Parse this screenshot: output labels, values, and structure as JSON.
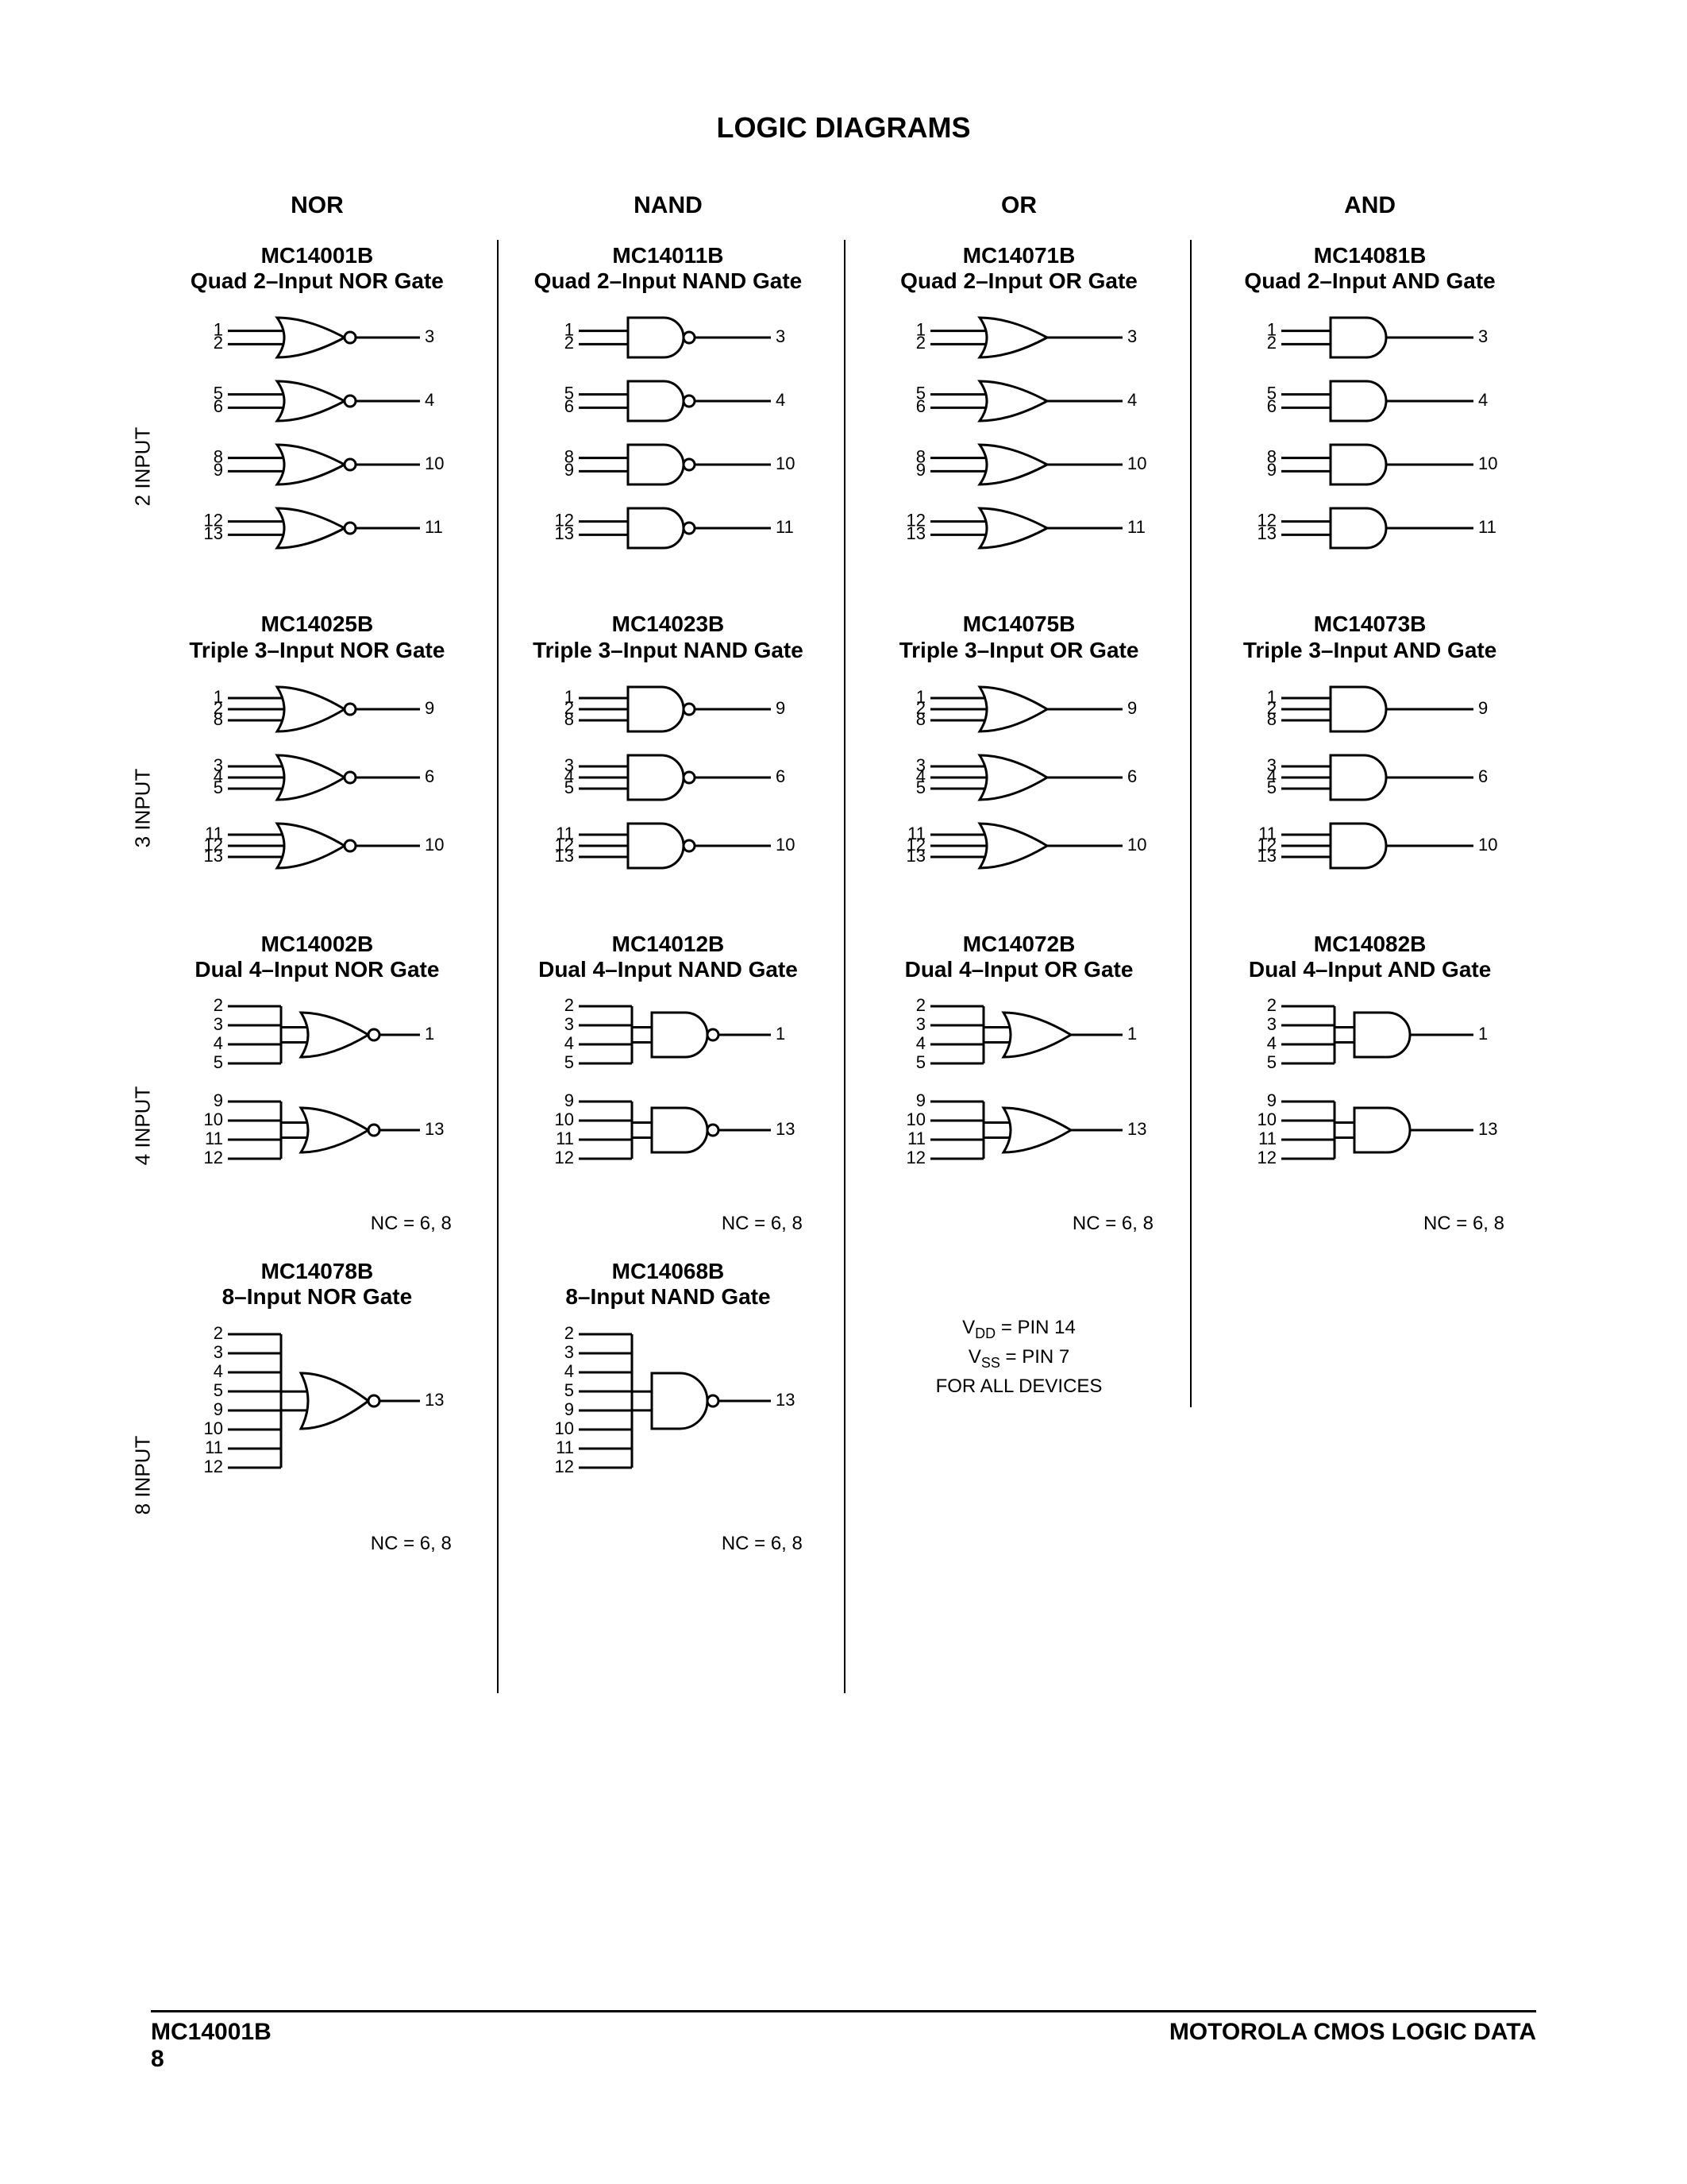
{
  "title": "LOGIC DIAGRAMS",
  "columns": [
    "NOR",
    "NAND",
    "OR",
    "AND"
  ],
  "rowLabels": [
    "2 INPUT",
    "3 INPUT",
    "4 INPUT",
    "8 INPUT"
  ],
  "pinNote": {
    "line1a": "V",
    "line1sub": "DD",
    "line1b": " = PIN 14",
    "line2a": "V",
    "line2sub": "SS",
    "line2b": " = PIN 7",
    "line3": "FOR ALL DEVICES"
  },
  "footer": {
    "left1": "MC14001B",
    "left2": "8",
    "right": "MOTOROLA CMOS LOGIC DATA"
  },
  "ncLabel": "NC = 6, 8",
  "style": {
    "stroke": "#000000",
    "strokeWidth": 3,
    "pinFont": 22,
    "gateFill": "#ffffff"
  },
  "cells": {
    "nor": {
      "q2": {
        "part": "MC14001B",
        "desc": "Quad 2–Input NOR Gate"
      },
      "t3": {
        "part": "MC14025B",
        "desc": "Triple 3–Input NOR Gate"
      },
      "d4": {
        "part": "MC14002B",
        "desc": "Dual 4–Input NOR Gate"
      },
      "i8": {
        "part": "MC14078B",
        "desc": "8–Input NOR Gate"
      }
    },
    "nand": {
      "q2": {
        "part": "MC14011B",
        "desc": "Quad 2–Input NAND Gate"
      },
      "t3": {
        "part": "MC14023B",
        "desc": "Triple 3–Input NAND Gate"
      },
      "d4": {
        "part": "MC14012B",
        "desc": "Dual 4–Input NAND Gate"
      },
      "i8": {
        "part": "MC14068B",
        "desc": "8–Input NAND Gate"
      }
    },
    "or": {
      "q2": {
        "part": "MC14071B",
        "desc": "Quad 2–Input OR Gate"
      },
      "t3": {
        "part": "MC14075B",
        "desc": "Triple 3–Input OR Gate"
      },
      "d4": {
        "part": "MC14072B",
        "desc": "Dual 4–Input OR Gate"
      }
    },
    "and": {
      "q2": {
        "part": "MC14081B",
        "desc": "Quad 2–Input AND Gate"
      },
      "t3": {
        "part": "MC14073B",
        "desc": "Triple 3–Input AND Gate"
      },
      "d4": {
        "part": "MC14082B",
        "desc": "Dual 4–Input AND Gate"
      }
    }
  },
  "pins": {
    "q2": [
      {
        "in": [
          "1",
          "2"
        ],
        "out": "3"
      },
      {
        "in": [
          "5",
          "6"
        ],
        "out": "4"
      },
      {
        "in": [
          "8",
          "9"
        ],
        "out": "10"
      },
      {
        "in": [
          "12",
          "13"
        ],
        "out": "11"
      }
    ],
    "t3": [
      {
        "in": [
          "1",
          "2",
          "8"
        ],
        "out": "9"
      },
      {
        "in": [
          "3",
          "4",
          "5"
        ],
        "out": "6"
      },
      {
        "in": [
          "11",
          "12",
          "13"
        ],
        "out": "10"
      }
    ],
    "d4": [
      {
        "in": [
          "2",
          "3",
          "4",
          "5"
        ],
        "out": "1"
      },
      {
        "in": [
          "9",
          "10",
          "11",
          "12"
        ],
        "out": "13"
      }
    ],
    "i8": [
      {
        "in": [
          "2",
          "3",
          "4",
          "5",
          "9",
          "10",
          "11",
          "12"
        ],
        "out": "13"
      }
    ]
  }
}
